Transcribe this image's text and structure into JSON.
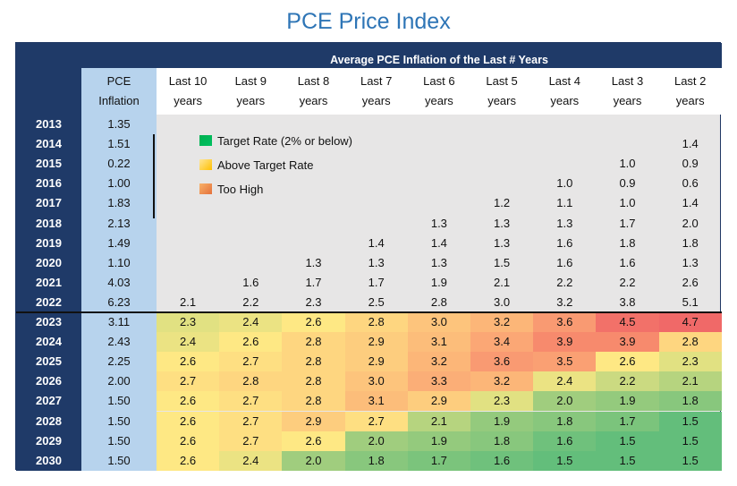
{
  "title": "PCE Price Index",
  "chart_data": {
    "type": "table",
    "title": "PCE Price Index",
    "subtitle": "Average PCE Inflation of the Last # Years",
    "columns": [
      {
        "line1": "PCE",
        "line2": "Inflation"
      },
      {
        "line1": "Last 10",
        "line2": "years"
      },
      {
        "line1": "Last 9",
        "line2": "years"
      },
      {
        "line1": "Last 8",
        "line2": "years"
      },
      {
        "line1": "Last 7",
        "line2": "years"
      },
      {
        "line1": "Last 6",
        "line2": "years"
      },
      {
        "line1": "Last 5",
        "line2": "years"
      },
      {
        "line1": "Last 4",
        "line2": "years"
      },
      {
        "line1": "Last 3",
        "line2": "years"
      },
      {
        "line1": "Last 2",
        "line2": "years"
      }
    ],
    "rows": [
      {
        "year": "2013",
        "pce": "1.35",
        "avgs": [
          null,
          null,
          null,
          null,
          null,
          null,
          null,
          null,
          null
        ]
      },
      {
        "year": "2014",
        "pce": "1.51",
        "avgs": [
          null,
          null,
          null,
          null,
          null,
          null,
          null,
          null,
          "1.4"
        ]
      },
      {
        "year": "2015",
        "pce": "0.22",
        "avgs": [
          null,
          null,
          null,
          null,
          null,
          null,
          null,
          "1.0",
          "0.9"
        ]
      },
      {
        "year": "2016",
        "pce": "1.00",
        "avgs": [
          null,
          null,
          null,
          null,
          null,
          null,
          "1.0",
          "0.9",
          "0.6"
        ]
      },
      {
        "year": "2017",
        "pce": "1.83",
        "avgs": [
          null,
          null,
          null,
          null,
          null,
          "1.2",
          "1.1",
          "1.0",
          "1.4"
        ]
      },
      {
        "year": "2018",
        "pce": "2.13",
        "avgs": [
          null,
          null,
          null,
          null,
          "1.3",
          "1.3",
          "1.3",
          "1.7",
          "2.0"
        ]
      },
      {
        "year": "2019",
        "pce": "1.49",
        "avgs": [
          null,
          null,
          null,
          "1.4",
          "1.4",
          "1.3",
          "1.6",
          "1.8",
          "1.8"
        ]
      },
      {
        "year": "2020",
        "pce": "1.10",
        "avgs": [
          null,
          null,
          "1.3",
          "1.3",
          "1.3",
          "1.5",
          "1.6",
          "1.6",
          "1.3"
        ]
      },
      {
        "year": "2021",
        "pce": "4.03",
        "avgs": [
          null,
          "1.6",
          "1.7",
          "1.7",
          "1.9",
          "2.1",
          "2.2",
          "2.2",
          "2.6"
        ]
      },
      {
        "year": "2022",
        "pce": "6.23",
        "avgs": [
          "2.1",
          "2.2",
          "2.3",
          "2.5",
          "2.8",
          "3.0",
          "3.2",
          "3.8",
          "5.1"
        ]
      },
      {
        "year": "2023",
        "pce": "3.11",
        "avgs": [
          "2.3",
          "2.4",
          "2.6",
          "2.8",
          "3.0",
          "3.2",
          "3.6",
          "4.5",
          "4.7"
        ]
      },
      {
        "year": "2024",
        "pce": "2.43",
        "avgs": [
          "2.4",
          "2.6",
          "2.8",
          "2.9",
          "3.1",
          "3.4",
          "3.9",
          "3.9",
          "2.8"
        ]
      },
      {
        "year": "2025",
        "pce": "2.25",
        "avgs": [
          "2.6",
          "2.7",
          "2.8",
          "2.9",
          "3.2",
          "3.6",
          "3.5",
          "2.6",
          "2.3"
        ]
      },
      {
        "year": "2026",
        "pce": "2.00",
        "avgs": [
          "2.7",
          "2.8",
          "2.8",
          "3.0",
          "3.3",
          "3.2",
          "2.4",
          "2.2",
          "2.1"
        ]
      },
      {
        "year": "2027",
        "pce": "1.50",
        "avgs": [
          "2.6",
          "2.7",
          "2.8",
          "3.1",
          "2.9",
          "2.3",
          "2.0",
          "1.9",
          "1.8"
        ]
      },
      {
        "year": "2028",
        "pce": "1.50",
        "avgs": [
          "2.6",
          "2.7",
          "2.9",
          "2.7",
          "2.1",
          "1.9",
          "1.8",
          "1.7",
          "1.5"
        ]
      },
      {
        "year": "2029",
        "pce": "1.50",
        "avgs": [
          "2.6",
          "2.7",
          "2.6",
          "2.0",
          "1.9",
          "1.8",
          "1.6",
          "1.5",
          "1.5"
        ]
      },
      {
        "year": "2030",
        "pce": "1.50",
        "avgs": [
          "2.6",
          "2.4",
          "2.0",
          "1.8",
          "1.7",
          "1.6",
          "1.5",
          "1.5",
          "1.5"
        ]
      }
    ],
    "heatmap_from_year": "2023",
    "legend": [
      {
        "label": "Target Rate (2% or below)",
        "color": "#00b050"
      },
      {
        "label": "Above Target Rate",
        "color": "#ffd966"
      },
      {
        "label": "Too High",
        "color": "#ed7d31"
      }
    ],
    "legend_placement": "upper-left of grid"
  },
  "colors": {
    "title": "#2e75b6",
    "header_band": "#1f3a68",
    "pce_column": "#b7d3ed",
    "grid_background": "#e7e6e6"
  }
}
